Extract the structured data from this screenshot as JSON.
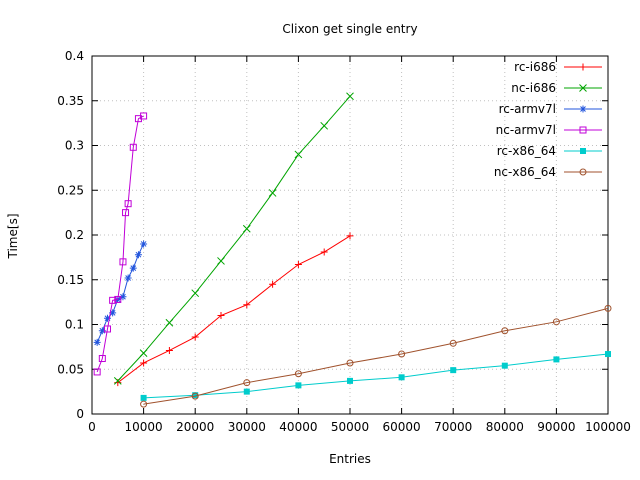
{
  "chart_data": {
    "type": "line",
    "title": "Clixon get single entry",
    "xlabel": "Entries",
    "ylabel": "Time[s]",
    "xlim": [
      0,
      100000
    ],
    "ylim": [
      0,
      0.4
    ],
    "xticks": [
      0,
      10000,
      20000,
      30000,
      40000,
      50000,
      60000,
      70000,
      80000,
      90000,
      100000
    ],
    "xtick_labels": [
      "0",
      "10000",
      "20000",
      "30000",
      "40000",
      "50000",
      "60000",
      "70000",
      "80000",
      "90000",
      "100000"
    ],
    "yticks": [
      0,
      0.05,
      0.1,
      0.15,
      0.2,
      0.25,
      0.3,
      0.35,
      0.4
    ],
    "ytick_labels": [
      "0",
      "0.05",
      "0.1",
      "0.15",
      "0.2",
      "0.25",
      "0.3",
      "0.35",
      "0.4"
    ],
    "grid": true,
    "grid_color": "#c0c0c0",
    "axis_color": "#000000",
    "background": "#ffffff",
    "legend_position": "top-right-inside",
    "series": [
      {
        "name": "rc-i686",
        "color": "#ff0000",
        "marker": "plus",
        "x": [
          5000,
          10000,
          15000,
          20000,
          25000,
          30000,
          35000,
          40000,
          45000,
          50000
        ],
        "y": [
          0.035,
          0.057,
          0.071,
          0.086,
          0.11,
          0.122,
          0.145,
          0.167,
          0.181,
          0.199
        ]
      },
      {
        "name": "nc-i686",
        "color": "#00a400",
        "marker": "x",
        "x": [
          5000,
          10000,
          15000,
          20000,
          25000,
          30000,
          35000,
          40000,
          45000,
          50000
        ],
        "y": [
          0.037,
          0.068,
          0.102,
          0.135,
          0.171,
          0.207,
          0.247,
          0.29,
          0.322,
          0.355
        ]
      },
      {
        "name": "rc-armv7l",
        "color": "#2255dd",
        "marker": "asterisk",
        "x": [
          1000,
          2000,
          3000,
          4000,
          5000,
          6000,
          7000,
          8000,
          9000,
          10000
        ],
        "y": [
          0.08,
          0.093,
          0.107,
          0.113,
          0.128,
          0.131,
          0.152,
          0.163,
          0.178,
          0.19
        ]
      },
      {
        "name": "nc-armv7l",
        "color": "#c000d8",
        "marker": "square-open",
        "x": [
          1000,
          2000,
          3000,
          4000,
          5000,
          6000,
          6500,
          7000,
          8000,
          9000,
          10000
        ],
        "y": [
          0.047,
          0.062,
          0.095,
          0.127,
          0.128,
          0.17,
          0.225,
          0.235,
          0.298,
          0.33,
          0.333
        ]
      },
      {
        "name": "rc-x86_64",
        "color": "#00cccc",
        "marker": "square-filled",
        "x": [
          10000,
          20000,
          30000,
          40000,
          50000,
          60000,
          70000,
          80000,
          90000,
          100000
        ],
        "y": [
          0.018,
          0.021,
          0.025,
          0.032,
          0.037,
          0.041,
          0.049,
          0.054,
          0.061,
          0.067
        ]
      },
      {
        "name": "nc-x86_64",
        "color": "#a0522d",
        "marker": "circle-open",
        "x": [
          10000,
          20000,
          30000,
          40000,
          50000,
          60000,
          70000,
          80000,
          90000,
          100000
        ],
        "y": [
          0.011,
          0.02,
          0.035,
          0.045,
          0.057,
          0.067,
          0.079,
          0.093,
          0.103,
          0.118
        ]
      }
    ]
  }
}
